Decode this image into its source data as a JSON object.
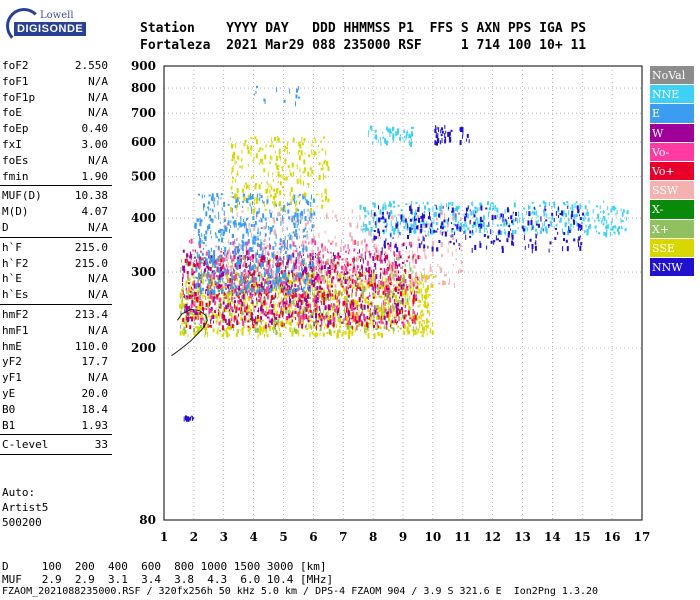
{
  "logo": {
    "top_text": "Lowell",
    "main_text": "DIGISONDE"
  },
  "header": {
    "line1": "Station    YYYY DAY   DDD HHMMSS P1  FFS S AXN PPS IGA PS",
    "line2": "Fortaleza  2021 Mar29 088 235000 RSF     1 714 100 10+ 11"
  },
  "params": {
    "group1": [
      {
        "name": "foF2",
        "value": "2.550"
      },
      {
        "name": "foF1",
        "value": "N/A"
      },
      {
        "name": "foF1p",
        "value": "N/A"
      },
      {
        "name": "foE",
        "value": "N/A"
      },
      {
        "name": "foEp",
        "value": "0.40"
      },
      {
        "name": "fxI",
        "value": "3.00"
      },
      {
        "name": "foEs",
        "value": "N/A"
      },
      {
        "name": "fmin",
        "value": "1.90"
      }
    ],
    "group2": [
      {
        "name": "MUF(D)",
        "value": "10.38"
      },
      {
        "name": "M(D)",
        "value": "4.07"
      },
      {
        "name": "D",
        "value": "N/A"
      }
    ],
    "group3": [
      {
        "name": "h`F",
        "value": "215.0"
      },
      {
        "name": "h`F2",
        "value": "215.0"
      },
      {
        "name": "h`E",
        "value": "N/A"
      },
      {
        "name": "h`Es",
        "value": "N/A"
      }
    ],
    "group4": [
      {
        "name": "hmF2",
        "value": "213.4"
      },
      {
        "name": "hmF1",
        "value": "N/A"
      },
      {
        "name": "hmE",
        "value": "110.0"
      },
      {
        "name": "yF2",
        "value": "17.7"
      },
      {
        "name": "yF1",
        "value": "N/A"
      },
      {
        "name": "yE",
        "value": "20.0"
      },
      {
        "name": "B0",
        "value": "18.4"
      },
      {
        "name": "B1",
        "value": "1.93"
      }
    ],
    "group5": [
      {
        "name": "C-level",
        "value": "33"
      }
    ]
  },
  "auto": {
    "line1": "Auto:",
    "line2": "Artist5",
    "line3": "500200"
  },
  "legend": [
    {
      "label": "NoVal",
      "color": "#8c8c8c"
    },
    {
      "label": "NNE",
      "color": "#3fd0f5"
    },
    {
      "label": "E",
      "color": "#3c9cf0"
    },
    {
      "label": "W",
      "color": "#a0009a"
    },
    {
      "label": "Vo-",
      "color": "#ff3aa0"
    },
    {
      "label": "Vo+",
      "color": "#e8002a"
    },
    {
      "label": "SSW",
      "color": "#f5b0b0"
    },
    {
      "label": "X-",
      "color": "#0a8a0a"
    },
    {
      "label": "X+",
      "color": "#90c060"
    },
    {
      "label": "SSE",
      "color": "#d8d800"
    },
    {
      "label": "NNW",
      "color": "#2010d0"
    }
  ],
  "bottom": {
    "d_line": "D     100  200  400  600  800 1000 1500 3000 [km]",
    "muf_line": "MUF   2.9  2.9  3.1  3.4  3.8  4.3  6.0 10.4 [MHz]",
    "file_line": "FZAOM_2021088235000.RSF / 320fx256h 50 kHz 5.0 km / DPS-4 FZAOM 904 / 3.9 S 321.6 E  Ion2Png 1.3.20"
  },
  "chart_data": {
    "type": "scatter",
    "title": "",
    "xlabel": "",
    "ylabel": "",
    "xlim": [
      1,
      17
    ],
    "ylim": [
      80,
      900
    ],
    "x_ticks": [
      1,
      2,
      3,
      4,
      5,
      6,
      7,
      8,
      9,
      10,
      11,
      12,
      13,
      14,
      15,
      16,
      17
    ],
    "y_ticks": [
      80,
      200,
      300,
      400,
      500,
      600,
      700,
      800,
      900
    ],
    "y_scale": "log",
    "grid": true,
    "legend_position": "right",
    "profile_curve": {
      "x": [
        1.25,
        1.6,
        1.9,
        2.1,
        2.3,
        2.4,
        2.45,
        2.4,
        2.2,
        1.9,
        1.6,
        1.45
      ],
      "y": [
        192,
        200,
        208,
        215,
        222,
        228,
        232,
        238,
        244,
        246,
        240,
        232
      ]
    },
    "clusters": [
      {
        "label": "SSE",
        "x": [
          1.5,
          10.0
        ],
        "y": [
          215,
          300
        ],
        "count": 1100
      },
      {
        "label": "X+",
        "x": [
          1.5,
          9.5
        ],
        "y": [
          220,
          330
        ],
        "count": 500
      },
      {
        "label": "Vo+",
        "x": [
          1.6,
          9.5
        ],
        "y": [
          225,
          330
        ],
        "count": 550
      },
      {
        "label": "W",
        "x": [
          1.6,
          9.0
        ],
        "y": [
          230,
          340
        ],
        "count": 500
      },
      {
        "label": "Vo-",
        "x": [
          1.8,
          9.5
        ],
        "y": [
          230,
          360
        ],
        "count": 400
      },
      {
        "label": "SSW",
        "x": [
          3.0,
          11.0
        ],
        "y": [
          280,
          420
        ],
        "count": 350
      },
      {
        "label": "E",
        "x": [
          2.0,
          6.0
        ],
        "y": [
          270,
          460
        ],
        "count": 600
      },
      {
        "label": "NNE",
        "x": [
          7.5,
          16.5
        ],
        "y": [
          370,
          440
        ],
        "count": 450
      },
      {
        "label": "NNW",
        "x": [
          8.0,
          15.0
        ],
        "y": [
          340,
          430
        ],
        "count": 250
      },
      {
        "label": "SSE",
        "x": [
          3.2,
          6.5
        ],
        "y": [
          420,
          620
        ],
        "count": 250
      },
      {
        "label": "NNE",
        "x": [
          7.8,
          9.3
        ],
        "y": [
          600,
          660
        ],
        "count": 60
      },
      {
        "label": "NNW",
        "x": [
          10.0,
          11.2
        ],
        "y": [
          600,
          660
        ],
        "count": 40
      },
      {
        "label": "E",
        "x": [
          4.0,
          5.5
        ],
        "y": [
          740,
          820
        ],
        "count": 15
      },
      {
        "label": "NNW",
        "x": [
          1.6,
          2.0
        ],
        "y": [
          137,
          140
        ],
        "count": 12
      }
    ]
  }
}
